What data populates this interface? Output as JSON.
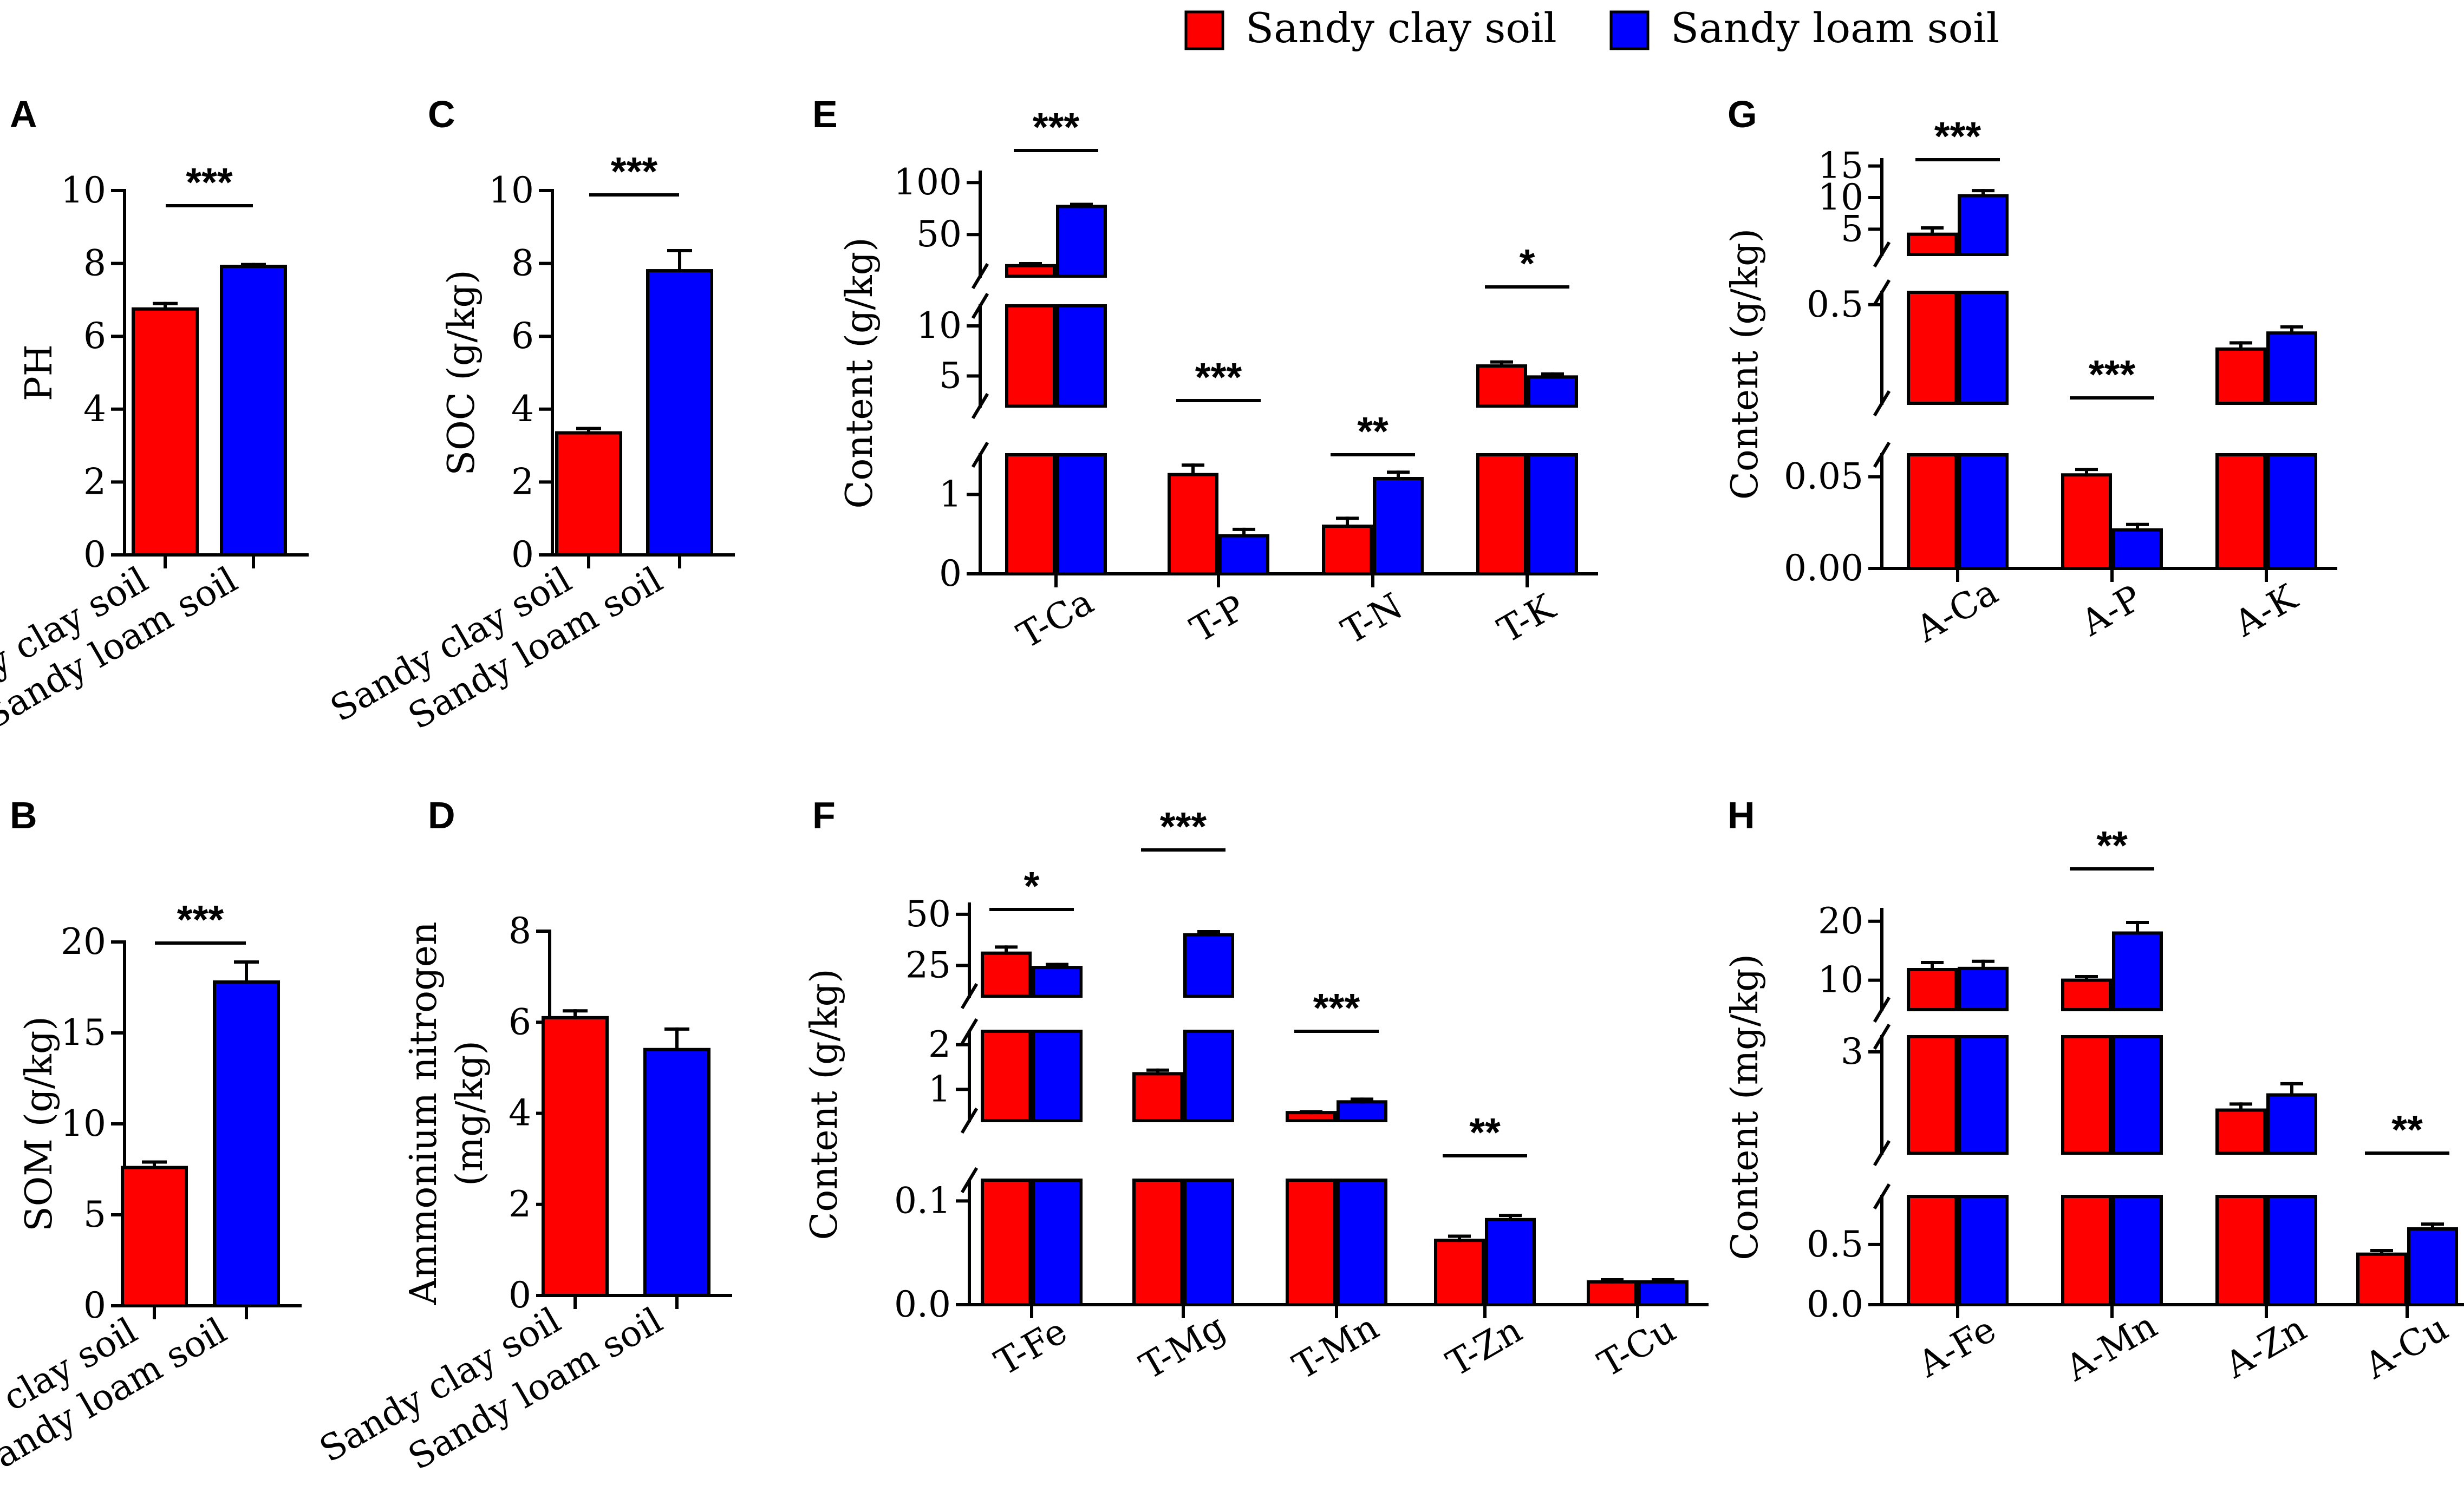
{
  "colors": {
    "sandy_clay": "#ff0000",
    "sandy_loam": "#0000ff"
  },
  "legend": {
    "items": [
      {
        "label": "Sandy clay soil",
        "color": "#ff0000"
      },
      {
        "label": "Sandy loam soil",
        "color": "#0000ff"
      }
    ]
  },
  "chart_data": [
    {
      "panel": "A",
      "type": "bar",
      "ylabel": "PH",
      "categories": [
        "Sandy clay soil",
        "Sandy loam soil"
      ],
      "values": [
        6.75,
        7.92
      ],
      "errors": [
        0.15,
        0.05
      ],
      "ylim": [
        0,
        10
      ],
      "yticks": [
        "0",
        "2",
        "4",
        "6",
        "8",
        "10"
      ],
      "significance": [
        {
          "label": "***"
        }
      ]
    },
    {
      "panel": "B",
      "type": "bar",
      "ylabel": "SOM (g/kg)",
      "categories": [
        "Sandy clay soil",
        "Sandy loam soil"
      ],
      "values": [
        7.6,
        17.8
      ],
      "errors": [
        0.3,
        1.1
      ],
      "ylim": [
        0,
        20
      ],
      "yticks": [
        "0",
        "5",
        "10",
        "15",
        "20"
      ],
      "significance": [
        {
          "label": "***"
        }
      ]
    },
    {
      "panel": "C",
      "type": "bar",
      "ylabel": "SOC (g/kg)",
      "categories": [
        "Sandy clay soil",
        "Sandy loam soil"
      ],
      "values": [
        3.35,
        7.8
      ],
      "errors": [
        0.12,
        0.55
      ],
      "ylim": [
        0,
        10
      ],
      "yticks": [
        "0",
        "2",
        "4",
        "6",
        "8",
        "10"
      ],
      "significance": [
        {
          "label": "***"
        }
      ]
    },
    {
      "panel": "D",
      "type": "bar",
      "ylabel_lines": [
        "Ammonium nitrogen",
        "(mg/kg)"
      ],
      "categories": [
        "Sandy clay soil",
        "Sandy loam soil"
      ],
      "values": [
        6.1,
        5.4
      ],
      "errors": [
        0.15,
        0.45
      ],
      "ylim": [
        0,
        8
      ],
      "yticks": [
        "0",
        "2",
        "4",
        "6",
        "8"
      ],
      "significance": []
    },
    {
      "panel": "E",
      "type": "bar",
      "ylabel": "Content (g/kg)",
      "broken_axis": true,
      "categories": [
        "T-Ca",
        "T-P",
        "T-N",
        "T-K"
      ],
      "series": [
        {
          "name": "Sandy clay soil",
          "values": [
            20,
            1.25,
            0.6,
            6.0
          ],
          "errors": [
            2,
            0.12,
            0.1,
            0.4
          ]
        },
        {
          "name": "Sandy loam soil",
          "values": [
            77,
            0.48,
            1.2,
            4.9
          ],
          "errors": [
            2,
            0.08,
            0.08,
            0.3
          ]
        }
      ],
      "segments": [
        {
          "range": [
            0,
            1.5
          ],
          "ticks": [
            "0",
            "1"
          ]
        },
        {
          "range": [
            2,
            12
          ],
          "ticks": [
            "5",
            "10"
          ]
        },
        {
          "range": [
            10,
            110
          ],
          "ticks": [
            "50",
            "100"
          ]
        }
      ],
      "significance": [
        {
          "label": "***"
        },
        {
          "label": "***"
        },
        {
          "label": "**"
        },
        {
          "label": "*"
        }
      ]
    },
    {
      "panel": "F",
      "type": "bar",
      "ylabel": "Content (g/kg)",
      "broken_axis": true,
      "categories": [
        "T-Fe",
        "T-Mg",
        "T-Mn",
        "T-Zn",
        "T-Cu"
      ],
      "series": [
        {
          "name": "Sandy clay soil",
          "values": [
            31,
            1.35,
            0.48,
            0.062,
            0.022
          ],
          "errors": [
            3,
            0.08,
            0.02,
            0.004,
            0.002
          ]
        },
        {
          "name": "Sandy loam soil",
          "values": [
            24,
            40,
            0.72,
            0.082,
            0.022
          ],
          "errors": [
            1.5,
            1.5,
            0.06,
            0.004,
            0.002
          ]
        }
      ],
      "segments": [
        {
          "range": [
            0,
            0.12
          ],
          "ticks": [
            "0.0",
            "0.1"
          ]
        },
        {
          "range": [
            0.3,
            2.3
          ],
          "ticks": [
            "1",
            "2"
          ]
        },
        {
          "range": [
            10,
            55
          ],
          "ticks": [
            "25",
            "50"
          ]
        }
      ],
      "significance": [
        {
          "label": "*"
        },
        {
          "label": "***"
        },
        {
          "label": "***"
        },
        {
          "label": "**"
        }
      ]
    },
    {
      "panel": "G",
      "type": "bar",
      "ylabel": "Content (g/kg)",
      "broken_axis": true,
      "categories": [
        "A-Ca",
        "A-P",
        "A-K"
      ],
      "series": [
        {
          "name": "Sandy clay soil",
          "values": [
            4.2,
            0.051,
            0.32
          ],
          "errors": [
            1.0,
            0.003,
            0.025
          ]
        },
        {
          "name": "Sandy loam soil",
          "values": [
            10.3,
            0.021,
            0.385
          ],
          "errors": [
            0.8,
            0.003,
            0.025
          ]
        }
      ],
      "segments": [
        {
          "range": [
            0,
            0.062
          ],
          "ticks": [
            "0.00",
            "0.05"
          ]
        },
        {
          "range": [
            0.1,
            0.55
          ],
          "ticks": [
            "0.5"
          ]
        },
        {
          "range": [
            1,
            16
          ],
          "ticks": [
            "5",
            "10",
            "15"
          ]
        }
      ],
      "significance": [
        {
          "label": "***"
        },
        {
          "label": "***"
        }
      ]
    },
    {
      "panel": "H",
      "type": "bar",
      "ylabel": "Content (mg/kg)",
      "broken_axis": true,
      "categories": [
        "A-Fe",
        "A-Mn",
        "A-Zn",
        "A-Cu"
      ],
      "series": [
        {
          "name": "Sandy clay soil",
          "values": [
            11.8,
            10.0,
            1.85,
            0.42
          ],
          "errors": [
            1.2,
            0.6,
            0.12,
            0.03
          ]
        },
        {
          "name": "Sandy loam soil",
          "values": [
            12.0,
            18.0,
            2.15,
            0.63
          ],
          "errors": [
            1.2,
            1.8,
            0.22,
            0.04
          ]
        }
      ],
      "segments": [
        {
          "range": [
            0,
            0.9
          ],
          "ticks": [
            "0.0",
            "0.5"
          ]
        },
        {
          "range": [
            1,
            3.3
          ],
          "ticks": [
            "3"
          ]
        },
        {
          "range": [
            5,
            22
          ],
          "ticks": [
            "10",
            "20"
          ]
        }
      ],
      "significance": [
        {
          "label": "**"
        },
        {
          "label": "**"
        }
      ]
    }
  ]
}
